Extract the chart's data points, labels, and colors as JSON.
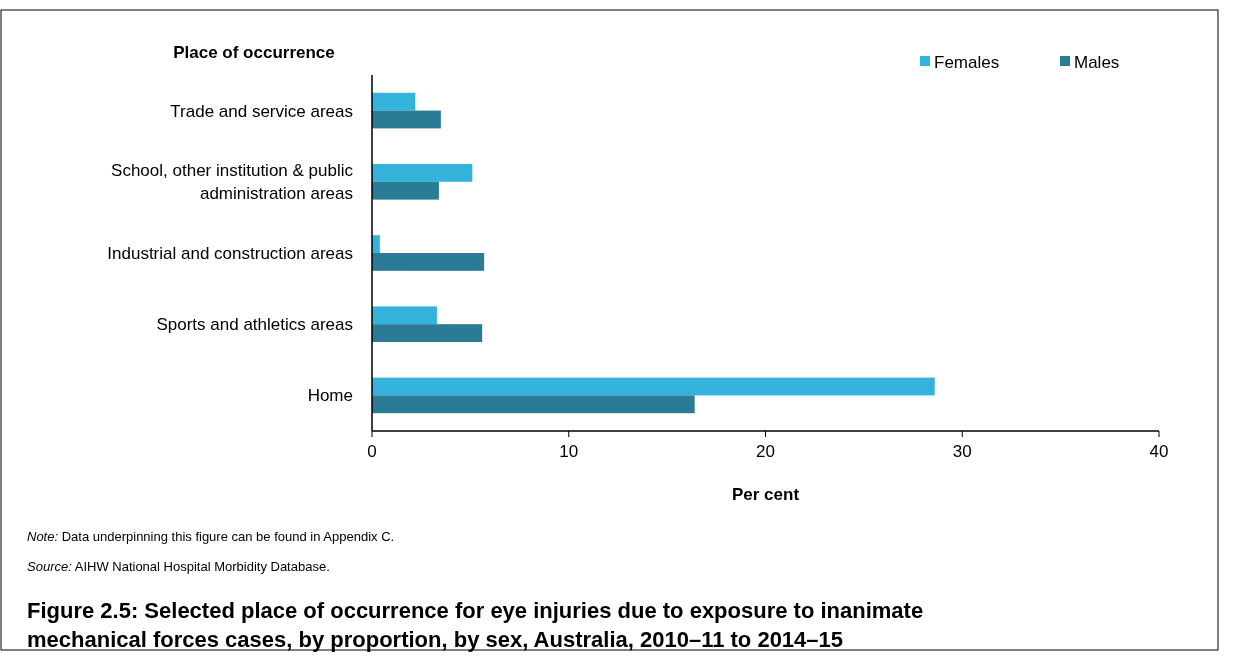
{
  "chart_data": {
    "type": "bar",
    "orientation": "horizontal",
    "title": "Figure 2.5: Selected place of occurrence for eye injuries due to exposure to inanimate mechanical forces cases, by proportion, by sex, Australia, 2010–11 to 2014–15",
    "ylabel": "Place of occurrence",
    "xlabel": "Per cent",
    "categories": [
      "Trade and service areas",
      "School, other institution & public administration areas",
      "Industrial and construction areas",
      "Sports and athletics areas",
      "Home"
    ],
    "series": [
      {
        "name": "Females",
        "color": "#33b3dc",
        "values": [
          2.2,
          5.1,
          0.4,
          3.3,
          28.6
        ]
      },
      {
        "name": "Males",
        "color": "#2a7b96",
        "values": [
          3.5,
          3.4,
          5.7,
          5.6,
          16.4
        ]
      }
    ],
    "xlim": [
      0,
      40
    ],
    "xticks": [
      0,
      10,
      20,
      30,
      40
    ],
    "grid": false,
    "legend": "top right",
    "annotations": [
      "Note: Data underpinning this figure can be found in Appendix C.",
      "Source: AIHW National Hospital Morbidity Database."
    ]
  }
}
